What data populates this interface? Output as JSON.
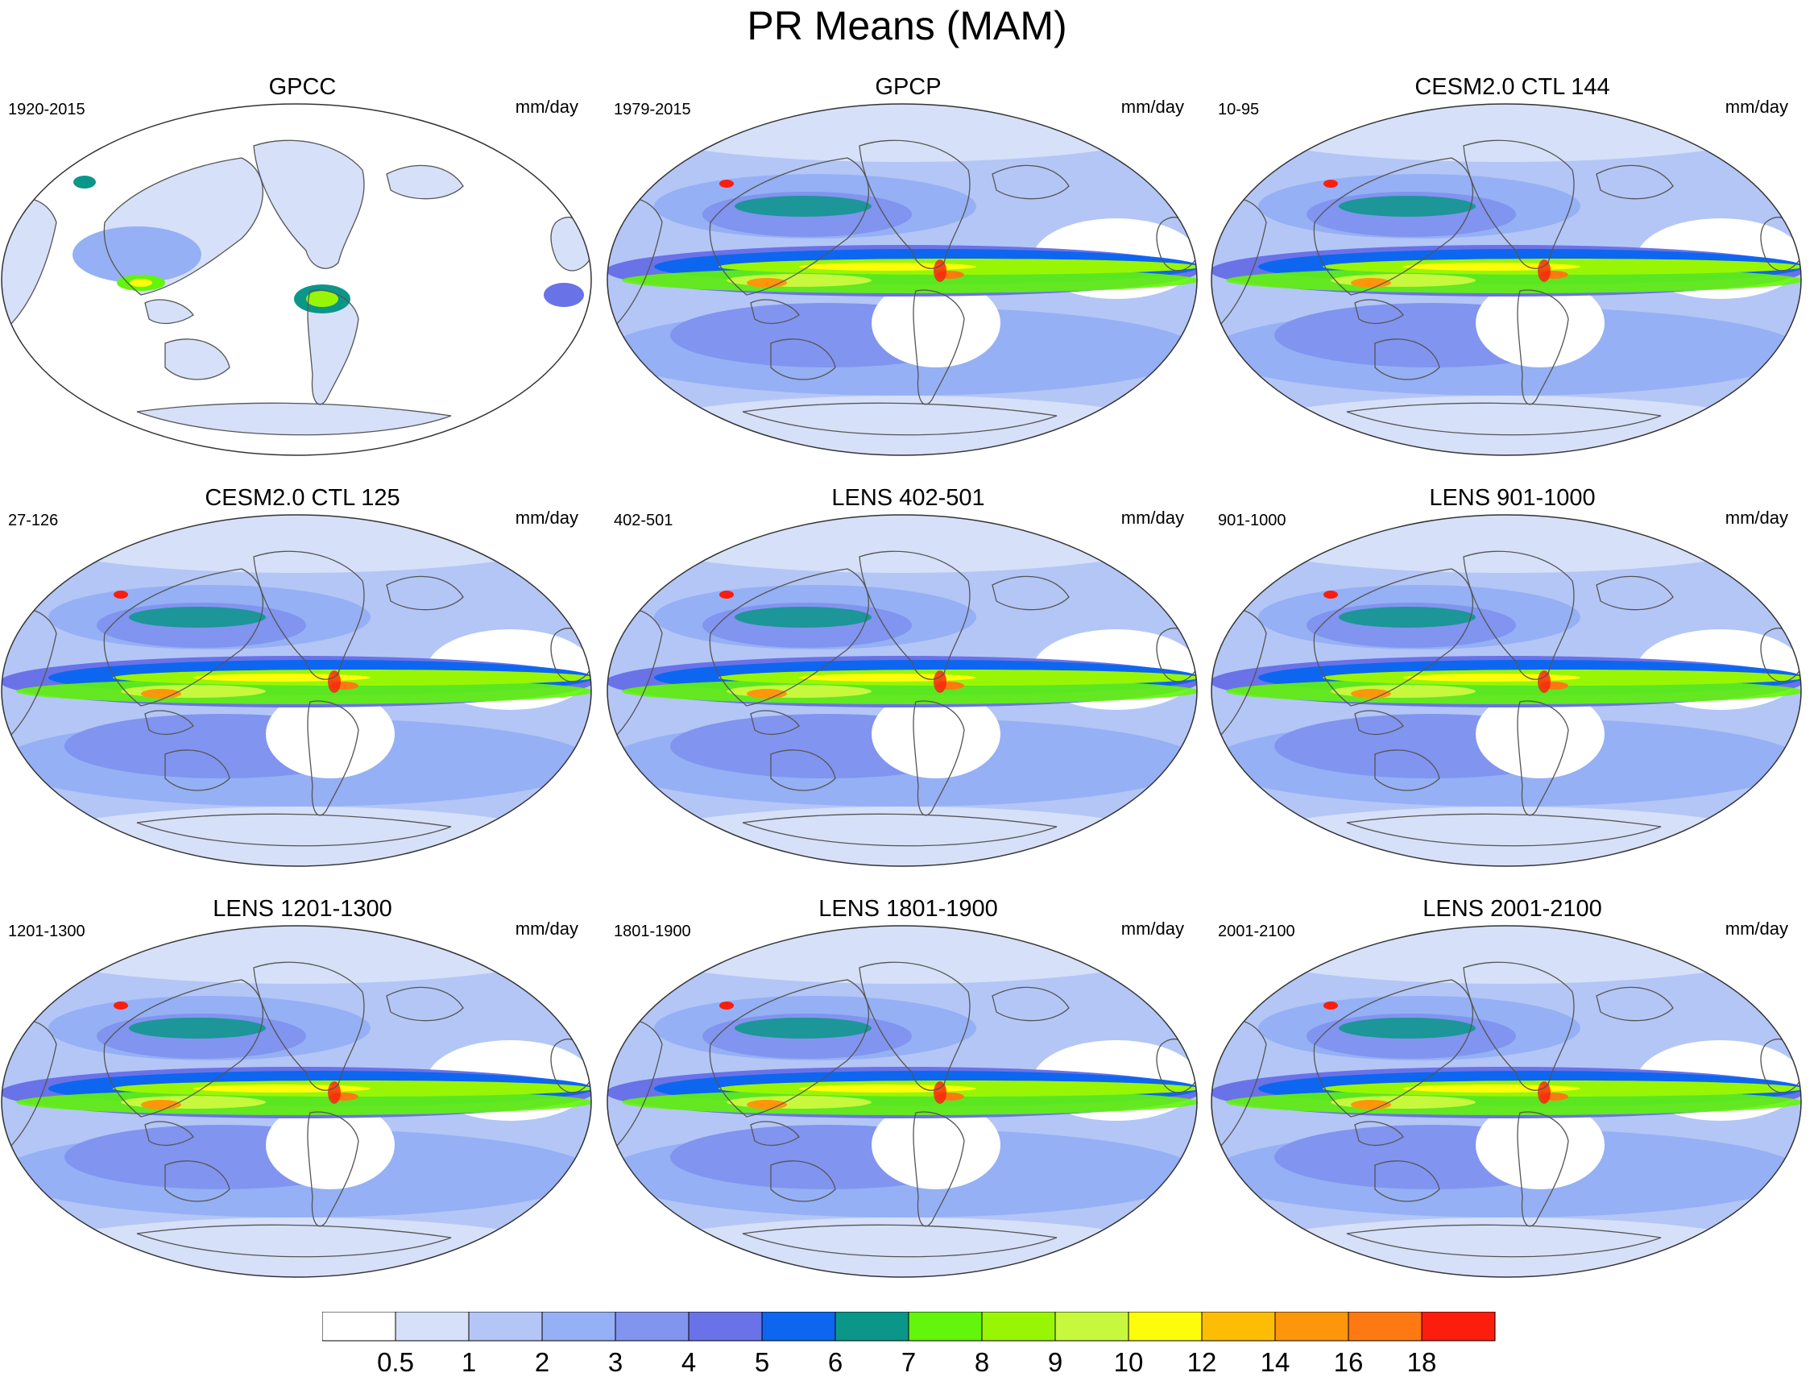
{
  "title": "PR Means (MAM)",
  "panels": [
    {
      "title": "GPCC",
      "period": "1920-2015",
      "units": "mm/day",
      "land_only": true
    },
    {
      "title": "GPCP",
      "period": "1979-2015",
      "units": "mm/day",
      "land_only": false
    },
    {
      "title": "CESM2.0 CTL 144",
      "period": "10-95",
      "units": "mm/day",
      "land_only": false
    },
    {
      "title": "CESM2.0 CTL 125",
      "period": "27-126",
      "units": "mm/day",
      "land_only": false
    },
    {
      "title": "LENS 402-501",
      "period": "402-501",
      "units": "mm/day",
      "land_only": false
    },
    {
      "title": "LENS 901-1000",
      "period": "901-1000",
      "units": "mm/day",
      "land_only": false
    },
    {
      "title": "LENS 1201-1300",
      "period": "1201-1300",
      "units": "mm/day",
      "land_only": false
    },
    {
      "title": "LENS 1801-1900",
      "period": "1801-1900",
      "units": "mm/day",
      "land_only": false
    },
    {
      "title": "LENS 2001-2100",
      "period": "2001-2100",
      "units": "mm/day",
      "land_only": false
    }
  ],
  "colorbar": {
    "labels": [
      "0.5",
      "1",
      "2",
      "3",
      "4",
      "5",
      "6",
      "7",
      "8",
      "9",
      "10",
      "12",
      "14",
      "16",
      "18"
    ],
    "colors": [
      "#ffffff",
      "#d6e0f8",
      "#b4c6f6",
      "#95b0f4",
      "#8194ef",
      "#6a72e8",
      "#0d66f0",
      "#0b968a",
      "#63f50b",
      "#98f605",
      "#c7f83d",
      "#fdfc0b",
      "#fdbd05",
      "#fe960c",
      "#fe7911",
      "#fd1d0c"
    ]
  }
}
